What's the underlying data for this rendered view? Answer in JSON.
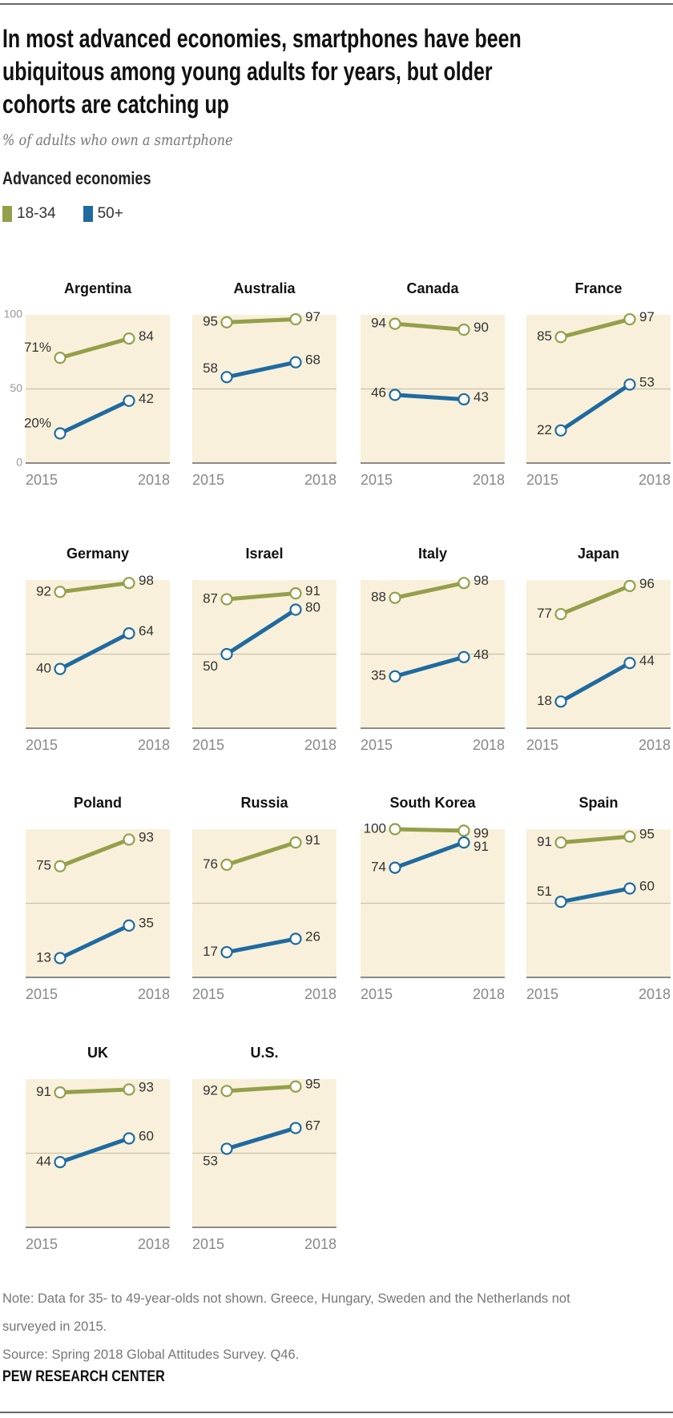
{
  "header": {
    "title_lines": [
      "In most advanced economies, smartphones have been",
      "ubiquitous among young adults for years, but older",
      "cohorts are catching up"
    ],
    "subtitle": "% of adults who own a smartphone",
    "section": "Advanced economies"
  },
  "legend": [
    {
      "label": "18-34",
      "color": "#949f4a"
    },
    {
      "label": "50+",
      "color": "#1f6aa0"
    }
  ],
  "chart_data": {
    "type": "line",
    "x": [
      "2015",
      "2018"
    ],
    "ylim": [
      0,
      100
    ],
    "yticks": [
      "100",
      "50",
      "0"
    ],
    "grid": "50 line",
    "series_names": [
      "18-34",
      "50+"
    ],
    "colors": {
      "18-34": "#949f4a",
      "50+": "#1f6aa0",
      "panel_bg": "#f8f0da"
    },
    "panels": [
      {
        "country": "Argentina",
        "young": [
          71,
          84
        ],
        "old": [
          20,
          42
        ],
        "young_labels": [
          "71%",
          "84"
        ],
        "old_labels": [
          "20%",
          "42"
        ]
      },
      {
        "country": "Australia",
        "young": [
          95,
          97
        ],
        "old": [
          58,
          68
        ],
        "young_labels": [
          "95",
          "97"
        ],
        "old_labels": [
          "58",
          "68"
        ]
      },
      {
        "country": "Canada",
        "young": [
          94,
          90
        ],
        "old": [
          46,
          43
        ],
        "young_labels": [
          "94",
          "90"
        ],
        "old_labels": [
          "46",
          "43"
        ]
      },
      {
        "country": "France",
        "young": [
          85,
          97
        ],
        "old": [
          22,
          53
        ],
        "young_labels": [
          "85",
          "97"
        ],
        "old_labels": [
          "22",
          "53"
        ]
      },
      {
        "country": "Germany",
        "young": [
          92,
          98
        ],
        "old": [
          40,
          64
        ],
        "young_labels": [
          "92",
          "98"
        ],
        "old_labels": [
          "40",
          "64"
        ]
      },
      {
        "country": "Israel",
        "young": [
          87,
          91
        ],
        "old": [
          50,
          80
        ],
        "young_labels": [
          "87",
          "91"
        ],
        "old_labels": [
          "50",
          "80"
        ]
      },
      {
        "country": "Italy",
        "young": [
          88,
          98
        ],
        "old": [
          35,
          48
        ],
        "young_labels": [
          "88",
          "98"
        ],
        "old_labels": [
          "35",
          "48"
        ]
      },
      {
        "country": "Japan",
        "young": [
          77,
          96
        ],
        "old": [
          18,
          44
        ],
        "young_labels": [
          "77",
          "96"
        ],
        "old_labels": [
          "18",
          "44"
        ]
      },
      {
        "country": "Poland",
        "young": [
          75,
          93
        ],
        "old": [
          13,
          35
        ],
        "young_labels": [
          "75",
          "93"
        ],
        "old_labels": [
          "13",
          "35"
        ]
      },
      {
        "country": "Russia",
        "young": [
          76,
          91
        ],
        "old": [
          17,
          26
        ],
        "young_labels": [
          "76",
          "91"
        ],
        "old_labels": [
          "17",
          "26"
        ]
      },
      {
        "country": "South Korea",
        "young": [
          100,
          99
        ],
        "old": [
          74,
          91
        ],
        "young_labels": [
          "100",
          "99"
        ],
        "old_labels": [
          "74",
          "91"
        ]
      },
      {
        "country": "Spain",
        "young": [
          91,
          95
        ],
        "old": [
          51,
          60
        ],
        "young_labels": [
          "91",
          "95"
        ],
        "old_labels": [
          "51",
          "60"
        ]
      },
      {
        "country": "UK",
        "young": [
          91,
          93
        ],
        "old": [
          44,
          60
        ],
        "young_labels": [
          "91",
          "93"
        ],
        "old_labels": [
          "44",
          "60"
        ]
      },
      {
        "country": "U.S.",
        "young": [
          92,
          95
        ],
        "old": [
          53,
          67
        ],
        "young_labels": [
          "92",
          "95"
        ],
        "old_labels": [
          "53",
          "67"
        ]
      }
    ]
  },
  "footer": {
    "note": "Note: Data for 35- to 49-year-olds not shown. Greece, Hungary, Sweden and the Netherlands not surveyed in 2015.",
    "source": "Source: Spring 2018 Global Attitudes Survey. Q46.",
    "brand": "PEW RESEARCH CENTER"
  }
}
